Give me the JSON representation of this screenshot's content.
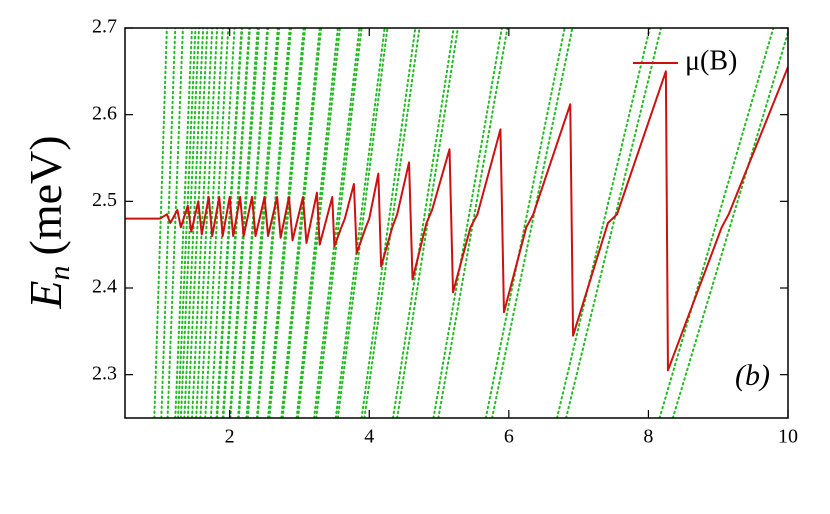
{
  "chart_data": {
    "type": "line",
    "y_label": {
      "symbol": "E",
      "subscript": "n",
      "unit": "(meV)"
    },
    "annotation": "(b)",
    "xlim": [
      0.5,
      10
    ],
    "ylim": [
      2.25,
      2.7
    ],
    "xticks": [
      2,
      4,
      6,
      8,
      10
    ],
    "yticks": [
      2.3,
      2.4,
      2.5,
      2.6,
      2.7
    ],
    "legend": "upper right",
    "series": [
      {
        "name": "μ(B)",
        "color": "#cc1111",
        "x": [
          0.5,
          1.0,
          1.1,
          1.15,
          1.25,
          1.3,
          1.4,
          1.45,
          1.55,
          1.6,
          1.7,
          1.75,
          1.85,
          1.9,
          2.0,
          2.05,
          2.15,
          2.2,
          2.32,
          2.37,
          2.5,
          2.55,
          2.68,
          2.73,
          2.85,
          2.9,
          3.05,
          3.1,
          3.25,
          3.29,
          3.47,
          3.5,
          3.6,
          3.65,
          3.78,
          3.82,
          3.95,
          4.0,
          4.13,
          4.17,
          4.33,
          4.4,
          4.57,
          4.62,
          4.82,
          4.9,
          5.15,
          5.2,
          5.45,
          5.55,
          5.88,
          5.93,
          6.25,
          6.35,
          6.88,
          6.92,
          7.42,
          7.55,
          8.25,
          8.28,
          9.05,
          9.15,
          10
        ],
        "values": [
          2.48,
          2.48,
          2.485,
          2.475,
          2.49,
          2.47,
          2.495,
          2.465,
          2.5,
          2.462,
          2.505,
          2.46,
          2.505,
          2.46,
          2.505,
          2.46,
          2.505,
          2.46,
          2.505,
          2.46,
          2.505,
          2.46,
          2.505,
          2.458,
          2.505,
          2.455,
          2.505,
          2.452,
          2.51,
          2.45,
          2.505,
          2.448,
          2.47,
          2.48,
          2.52,
          2.44,
          2.47,
          2.48,
          2.532,
          2.425,
          2.47,
          2.485,
          2.545,
          2.41,
          2.475,
          2.49,
          2.56,
          2.395,
          2.47,
          2.485,
          2.583,
          2.372,
          2.47,
          2.485,
          2.612,
          2.345,
          2.475,
          2.485,
          2.65,
          2.305,
          2.47,
          2.485,
          2.655
        ]
      }
    ],
    "levels": {
      "color": "#22bb22",
      "lines": [
        {
          "x": [
            8.16,
            9.79
          ],
          "values": [
            2.25,
            2.7
          ]
        },
        {
          "x": [
            8.35,
            10.02
          ],
          "values": [
            2.25,
            2.7
          ]
        },
        {
          "x": [
            6.69,
            8.02
          ],
          "values": [
            2.25,
            2.7
          ]
        },
        {
          "x": [
            6.82,
            8.18
          ],
          "values": [
            2.25,
            2.7
          ]
        },
        {
          "x": [
            5.67,
            6.8
          ],
          "values": [
            2.25,
            2.7
          ]
        },
        {
          "x": [
            5.76,
            6.91
          ],
          "values": [
            2.25,
            2.7
          ]
        },
        {
          "x": [
            4.92,
            5.9
          ],
          "values": [
            2.25,
            2.7
          ]
        },
        {
          "x": [
            4.99,
            5.98
          ],
          "values": [
            2.25,
            2.7
          ]
        },
        {
          "x": [
            4.34,
            5.21
          ],
          "values": [
            2.25,
            2.7
          ]
        },
        {
          "x": [
            4.4,
            5.27
          ],
          "values": [
            2.25,
            2.7
          ]
        },
        {
          "x": [
            3.89,
            4.66
          ],
          "values": [
            2.25,
            2.7
          ]
        },
        {
          "x": [
            3.93,
            4.72
          ],
          "values": [
            2.25,
            2.7
          ]
        },
        {
          "x": [
            3.52,
            4.22
          ],
          "values": [
            2.25,
            2.7
          ]
        },
        {
          "x": [
            3.55,
            4.26
          ],
          "values": [
            2.25,
            2.7
          ]
        },
        {
          "x": [
            3.21,
            3.86
          ],
          "values": [
            2.25,
            2.7
          ]
        },
        {
          "x": [
            3.24,
            3.89
          ],
          "values": [
            2.25,
            2.7
          ]
        },
        {
          "x": [
            2.96,
            3.55
          ],
          "values": [
            2.25,
            2.7
          ]
        },
        {
          "x": [
            2.98,
            3.58
          ],
          "values": [
            2.25,
            2.7
          ]
        },
        {
          "x": [
            2.74,
            3.29
          ],
          "values": [
            2.25,
            2.7
          ]
        },
        {
          "x": [
            2.76,
            3.31
          ],
          "values": [
            2.25,
            2.7
          ]
        },
        {
          "x": [
            2.55,
            3.06
          ],
          "values": [
            2.25,
            2.7
          ]
        },
        {
          "x": [
            2.57,
            3.08
          ],
          "values": [
            2.25,
            2.7
          ]
        },
        {
          "x": [
            2.39,
            2.86
          ],
          "values": [
            2.25,
            2.7
          ]
        },
        {
          "x": [
            2.4,
            2.88
          ],
          "values": [
            2.25,
            2.7
          ]
        },
        {
          "x": [
            2.24,
            2.69
          ],
          "values": [
            2.25,
            2.7
          ]
        },
        {
          "x": [
            2.26,
            2.71
          ],
          "values": [
            2.25,
            2.7
          ]
        },
        {
          "x": [
            2.12,
            2.54
          ],
          "values": [
            2.25,
            2.7
          ]
        },
        {
          "x": [
            2.13,
            2.55
          ],
          "values": [
            2.25,
            2.7
          ]
        },
        {
          "x": [
            2.0,
            2.4
          ],
          "values": [
            2.25,
            2.7
          ]
        },
        {
          "x": [
            2.01,
            2.42
          ],
          "values": [
            2.25,
            2.7
          ]
        },
        {
          "x": [
            1.9,
            2.28
          ],
          "values": [
            2.25,
            2.7
          ]
        },
        {
          "x": [
            1.91,
            2.29
          ],
          "values": [
            2.25,
            2.7
          ]
        },
        {
          "x": [
            1.81,
            2.17
          ],
          "values": [
            2.25,
            2.7
          ]
        },
        {
          "x": [
            1.82,
            2.18
          ],
          "values": [
            2.25,
            2.7
          ]
        },
        {
          "x": [
            1.73,
            2.07
          ],
          "values": [
            2.25,
            2.7
          ]
        },
        {
          "x": [
            1.65,
            1.98
          ],
          "values": [
            2.25,
            2.7
          ]
        },
        {
          "x": [
            1.58,
            1.9
          ],
          "values": [
            2.25,
            2.7
          ]
        },
        {
          "x": [
            1.52,
            1.82
          ],
          "values": [
            2.25,
            2.7
          ]
        },
        {
          "x": [
            1.46,
            1.75
          ],
          "values": [
            2.25,
            2.7
          ]
        },
        {
          "x": [
            1.4,
            1.68
          ],
          "values": [
            2.25,
            2.7
          ]
        },
        {
          "x": [
            1.35,
            1.62
          ],
          "values": [
            2.25,
            2.7
          ]
        },
        {
          "x": [
            1.3,
            1.56
          ],
          "values": [
            2.25,
            2.7
          ]
        },
        {
          "x": [
            1.26,
            1.51
          ],
          "values": [
            2.25,
            2.7
          ]
        },
        {
          "x": [
            1.22,
            1.46
          ],
          "values": [
            2.25,
            2.7
          ]
        },
        {
          "x": [
            1.11,
            1.33
          ],
          "values": [
            2.25,
            2.7
          ]
        },
        {
          "x": [
            1.02,
            1.22
          ],
          "values": [
            2.25,
            2.7
          ]
        },
        {
          "x": [
            0.92,
            1.1
          ],
          "values": [
            2.25,
            2.7
          ]
        }
      ]
    }
  }
}
